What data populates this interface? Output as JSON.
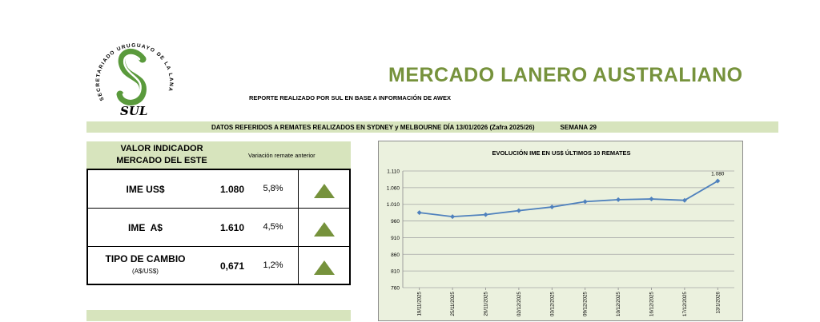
{
  "logo": {
    "ring_text": "SECRETARIADO URUGUAYO DE LA LANA",
    "mark_text": "SUL"
  },
  "header": {
    "title": "MERCADO LANERO AUSTRALIANO",
    "subtitle": "REPORTE REALIZADO POR SUL EN BASE A INFORMACIÓN DE AWEX"
  },
  "banner": {
    "text": "DATOS REFERIDOS A REMATES REALIZADOS EN SYDNEY y MELBOURNE DÍA 13/01/2026  (Zafra 2025/26)",
    "week": "SEMANA 29"
  },
  "indicators": {
    "header_line1": "VALOR INDICADOR",
    "header_line2": "MERCADO DEL ESTE",
    "variation_header": "Variación remate anterior",
    "rows": [
      {
        "label": "IME US$",
        "sublabel": "",
        "value": "1.080",
        "change": "5,8%",
        "trend": "up-triangle-icon"
      },
      {
        "label": "IME  A$",
        "sublabel": "",
        "value": "1.610",
        "change": "4,5%",
        "trend": "up-triangle-icon"
      },
      {
        "label": "TIPO DE CAMBIO",
        "sublabel": "(A$/US$)",
        "value": "0,671",
        "change": "1,2%",
        "trend": "up-triangle-icon"
      }
    ]
  },
  "colors": {
    "brand_green": "#76923c",
    "panel_green": "#d7e4bd",
    "chart_bg": "#ebf1de",
    "series_line": "#4f81bd"
  },
  "chart_data": {
    "type": "line",
    "title": "EVOLUCIÓN IME EN US$ ÚLTIMOS 10 REMATES",
    "categories": [
      "19/11/2025",
      "25/11/2025",
      "26/11/2025",
      "02/12/2025",
      "03/12/2025",
      "09/12/2025",
      "10/12/2025",
      "16/12/2025",
      "17/12/2025",
      "13/1/2026"
    ],
    "values": [
      985,
      973,
      979,
      991,
      1002,
      1018,
      1024,
      1026,
      1022,
      1080
    ],
    "data_labels": [
      "",
      "",
      "",
      "",
      "",
      "",
      "",
      "",
      "",
      "1.080"
    ],
    "yticks": [
      "1.110",
      "1.060",
      "1.010",
      "960",
      "910",
      "860",
      "810",
      "760"
    ],
    "ylim": [
      760,
      1110
    ],
    "grid": true
  }
}
